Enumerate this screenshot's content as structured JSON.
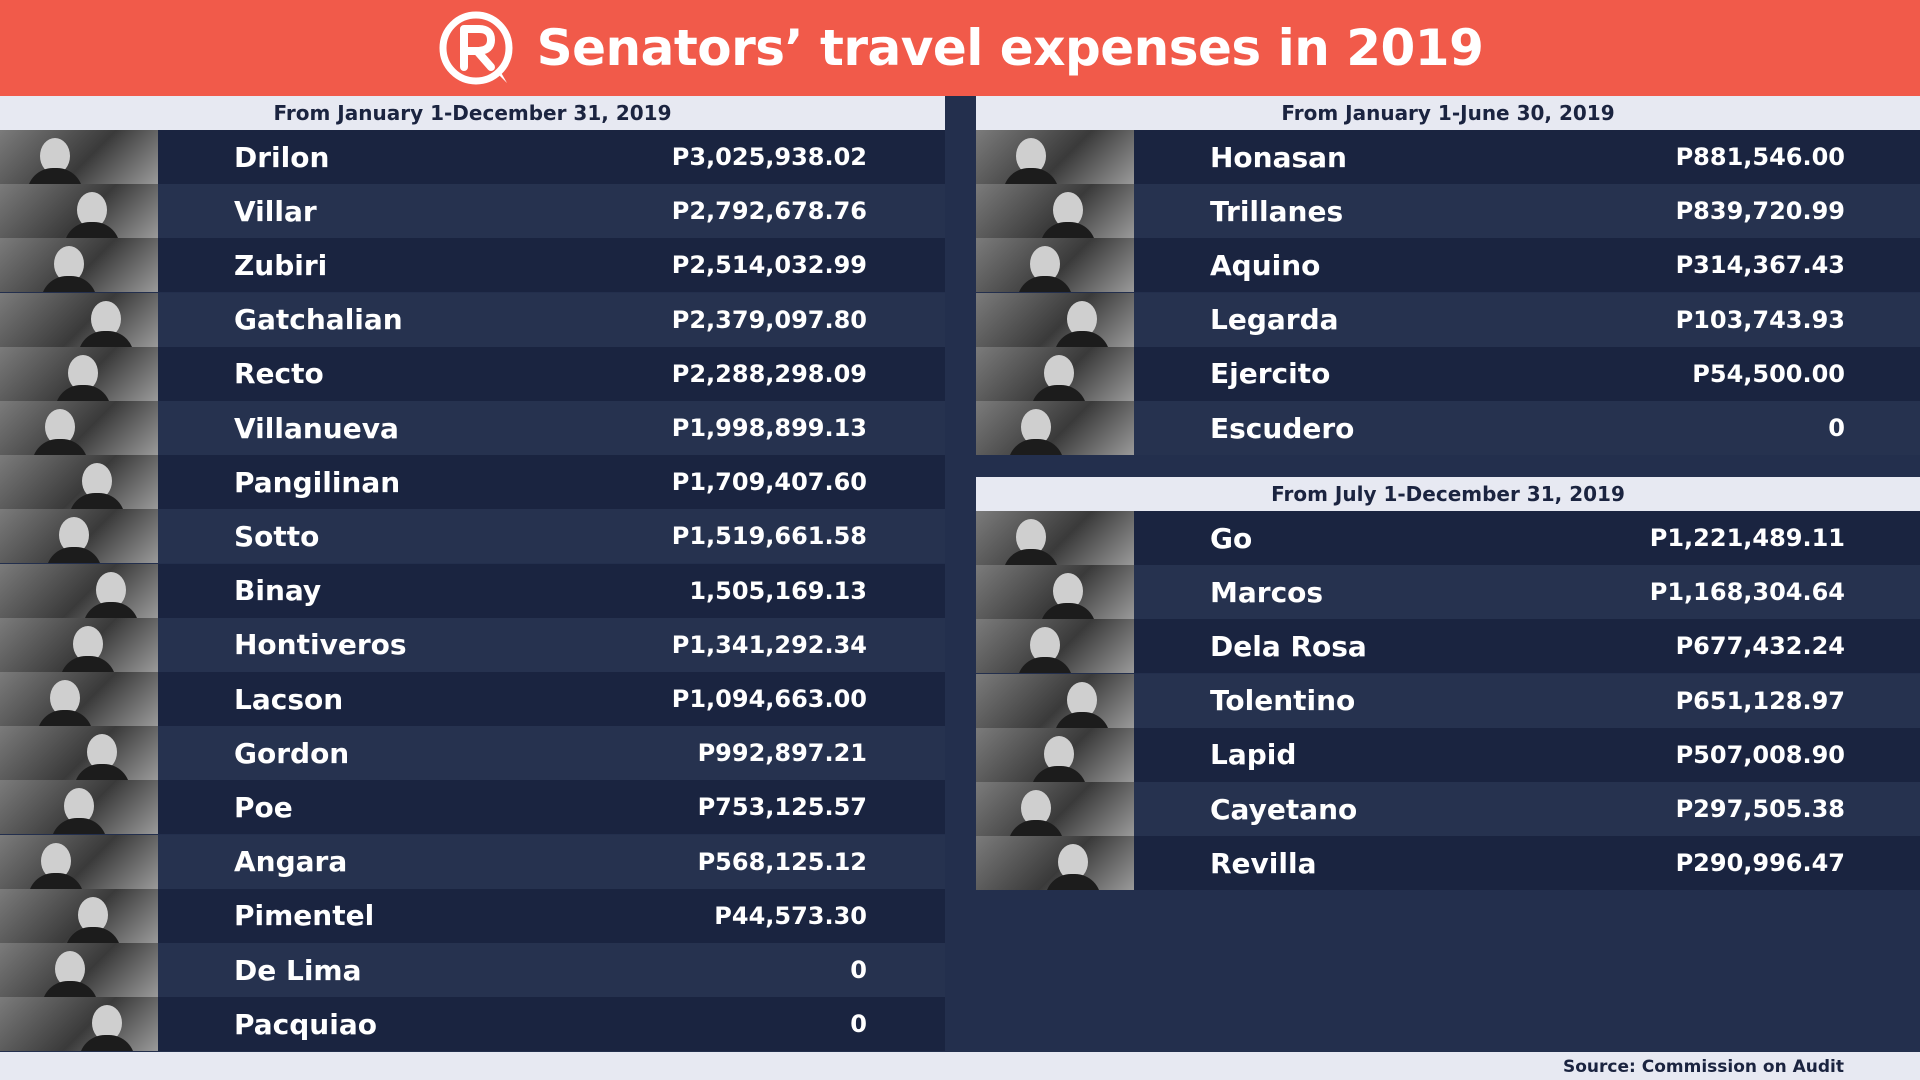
{
  "header": {
    "title": "Senators’ travel expenses in 2019",
    "logo_icon": "rappler-logo",
    "color": "#f15a4a"
  },
  "left_panel": {
    "period": "From January 1-December 31, 2019",
    "rows": [
      {
        "name": "Drilon",
        "amount": "P3,025,938.02"
      },
      {
        "name": "Villar",
        "amount": "P2,792,678.76"
      },
      {
        "name": "Zubiri",
        "amount": "P2,514,032.99"
      },
      {
        "name": "Gatchalian",
        "amount": "P2,379,097.80"
      },
      {
        "name": "Recto",
        "amount": "P2,288,298.09"
      },
      {
        "name": "Villanueva",
        "amount": "P1,998,899.13"
      },
      {
        "name": "Pangilinan",
        "amount": "P1,709,407.60"
      },
      {
        "name": "Sotto",
        "amount": "P1,519,661.58"
      },
      {
        "name": "Binay",
        "amount": "1,505,169.13"
      },
      {
        "name": "Hontiveros",
        "amount": "P1,341,292.34"
      },
      {
        "name": "Lacson",
        "amount": "P1,094,663.00"
      },
      {
        "name": "Gordon",
        "amount": "P992,897.21"
      },
      {
        "name": "Poe",
        "amount": "P753,125.57"
      },
      {
        "name": "Angara",
        "amount": "P568,125.12"
      },
      {
        "name": "Pimentel",
        "amount": "P44,573.30"
      },
      {
        "name": "De Lima",
        "amount": "0"
      },
      {
        "name": "Pacquiao",
        "amount": "0"
      }
    ]
  },
  "right_top": {
    "period": "From January 1-June 30, 2019",
    "rows": [
      {
        "name": "Honasan",
        "amount": "P881,546.00"
      },
      {
        "name": "Trillanes",
        "amount": "P839,720.99"
      },
      {
        "name": "Aquino",
        "amount": "P314,367.43"
      },
      {
        "name": "Legarda",
        "amount": "P103,743.93"
      },
      {
        "name": "Ejercito",
        "amount": "P54,500.00"
      },
      {
        "name": "Escudero",
        "amount": "0"
      }
    ]
  },
  "right_bottom": {
    "period": "From July 1-December 31, 2019",
    "rows": [
      {
        "name": "Go",
        "amount": "P1,221,489.11"
      },
      {
        "name": "Marcos",
        "amount": "P1,168,304.64"
      },
      {
        "name": "Dela Rosa",
        "amount": "P677,432.24"
      },
      {
        "name": "Tolentino",
        "amount": "P651,128.97"
      },
      {
        "name": "Lapid",
        "amount": "P507,008.90"
      },
      {
        "name": "Cayetano",
        "amount": "P297,505.38"
      },
      {
        "name": "Revilla",
        "amount": "P290,996.47"
      }
    ]
  },
  "footer": {
    "source": "Source: Commission on Audit"
  }
}
